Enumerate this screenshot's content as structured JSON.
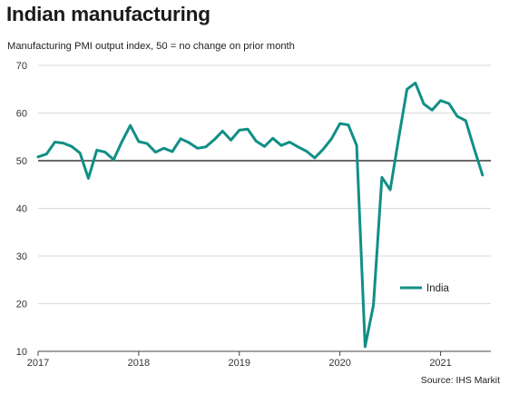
{
  "title": "Indian manufacturing",
  "subtitle": "Manufacturing PMI output index, 50 = no change on prior month",
  "source": "Source: IHS Markit",
  "chart_data": {
    "type": "line",
    "title": "Indian manufacturing",
    "ylabel": "Manufacturing PMI output index, 50 = no change on prior month",
    "xlabel": "",
    "ylim": [
      10,
      70
    ],
    "y_ticks": [
      10,
      20,
      30,
      40,
      50,
      60,
      70
    ],
    "x_ticks": [
      "2017",
      "2018",
      "2019",
      "2020",
      "2021"
    ],
    "x_start": "2017-01",
    "reference_line": 50,
    "grid": "horizontal",
    "legend_position": "right-lower",
    "colors": {
      "series": "#118f86",
      "grid": "#d9d9d9",
      "reference": "#111111"
    },
    "series": [
      {
        "name": "India",
        "x": [
          "2017-01",
          "2017-02",
          "2017-03",
          "2017-04",
          "2017-05",
          "2017-06",
          "2017-07",
          "2017-08",
          "2017-09",
          "2017-10",
          "2017-11",
          "2017-12",
          "2018-01",
          "2018-02",
          "2018-03",
          "2018-04",
          "2018-05",
          "2018-06",
          "2018-07",
          "2018-08",
          "2018-09",
          "2018-10",
          "2018-11",
          "2018-12",
          "2019-01",
          "2019-02",
          "2019-03",
          "2019-04",
          "2019-05",
          "2019-06",
          "2019-07",
          "2019-08",
          "2019-09",
          "2019-10",
          "2019-11",
          "2019-12",
          "2020-01",
          "2020-02",
          "2020-03",
          "2020-04",
          "2020-05",
          "2020-06",
          "2020-07",
          "2020-08",
          "2020-09",
          "2020-10",
          "2020-11",
          "2020-12",
          "2021-01",
          "2021-02",
          "2021-03",
          "2021-04",
          "2021-05",
          "2021-06"
        ],
        "values": [
          50.8,
          51.4,
          53.9,
          53.7,
          53.0,
          51.6,
          46.3,
          52.2,
          51.8,
          50.2,
          54.0,
          57.4,
          54.0,
          53.6,
          51.8,
          52.6,
          51.9,
          54.6,
          53.8,
          52.6,
          52.9,
          54.4,
          56.2,
          54.3,
          56.4,
          56.6,
          54.1,
          53.0,
          54.7,
          53.2,
          53.9,
          52.9,
          52.0,
          50.6,
          52.4,
          54.6,
          57.8,
          57.5,
          53.2,
          11.0,
          19.7,
          46.5,
          43.9,
          54.7,
          65.0,
          66.3,
          61.9,
          60.6,
          62.6,
          62.0,
          59.3,
          58.4,
          52.6,
          47.0
        ]
      }
    ]
  }
}
